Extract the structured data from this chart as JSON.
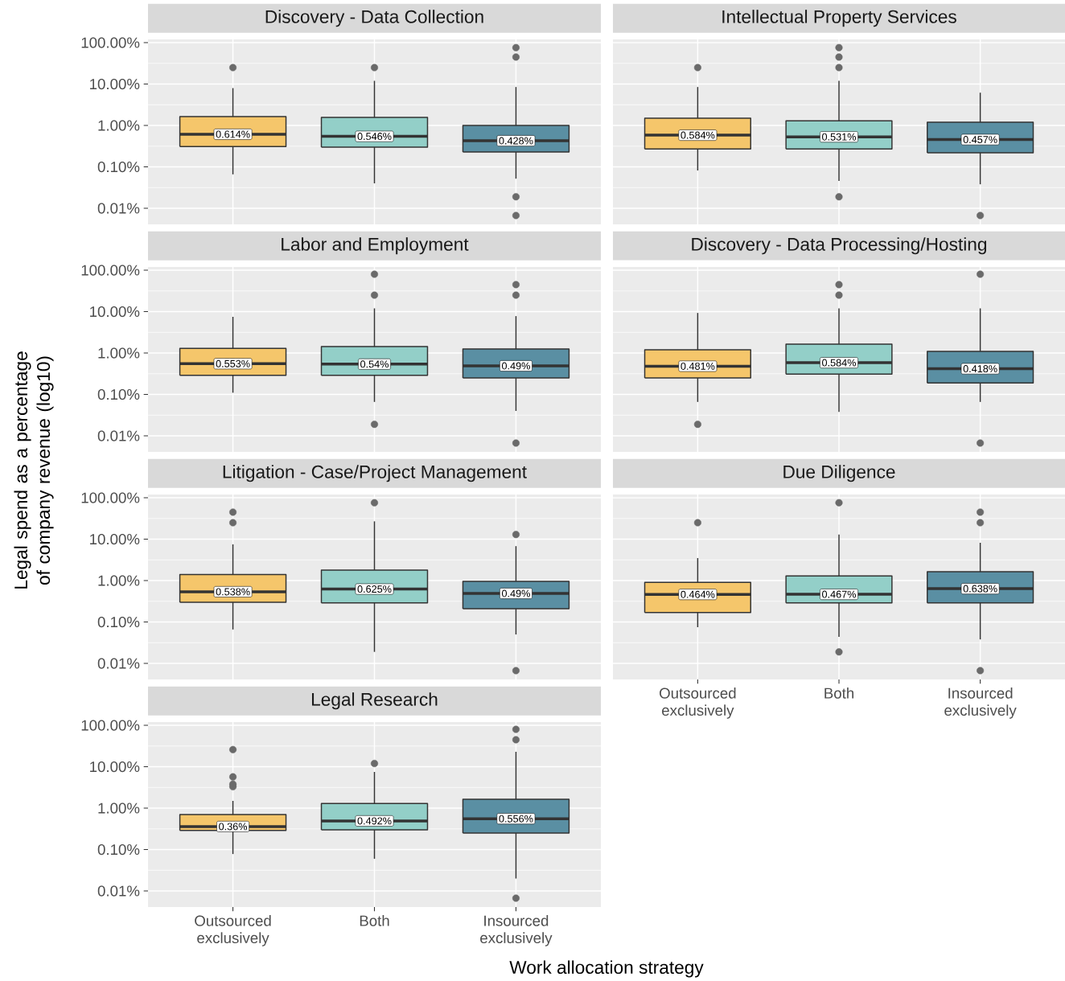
{
  "chart_data": [
    {
      "type": "box",
      "title": "Discovery - Data Collection",
      "categories": [
        "Outsourced exclusively",
        "Both",
        "Insourced exclusively"
      ],
      "colors": [
        "#f5c66b",
        "#93cfc8",
        "#5a8fa3"
      ],
      "log": true,
      "grid": true,
      "tick_labels": "y",
      "ylim": [
        0.0041,
        120
      ],
      "yticks": [
        {
          "value": 0.01,
          "label": "0.01%"
        },
        {
          "value": 0.1,
          "label": "0.10%"
        },
        {
          "value": 1,
          "label": "1.00%"
        },
        {
          "value": 10,
          "label": "10.00%"
        },
        {
          "value": 100,
          "label": "100.00%"
        }
      ],
      "boxes": [
        {
          "low": 0.066,
          "q1": 0.31,
          "median": 0.614,
          "q3": 1.64,
          "high": 8.0,
          "outliers": [
            25
          ]
        },
        {
          "low": 0.04,
          "q1": 0.3,
          "median": 0.546,
          "q3": 1.56,
          "high": 12,
          "outliers": [
            25
          ]
        },
        {
          "low": 0.052,
          "q1": 0.23,
          "median": 0.428,
          "q3": 1.0,
          "high": 8.5,
          "outliers": [
            76,
            45,
            0.019,
            0.0067
          ]
        }
      ],
      "annotations": [
        {
          "text": "0.614%",
          "x": "Outsourced exclusively",
          "y": 0.614
        },
        {
          "text": "0.546%",
          "x": "Both",
          "y": 0.546
        },
        {
          "text": "0.428%",
          "x": "Insourced exclusively",
          "y": 0.428
        }
      ]
    },
    {
      "type": "box",
      "title": "Intellectual Property Services",
      "categories": [
        "Outsourced exclusively",
        "Both",
        "Insourced exclusively"
      ],
      "colors": [
        "#f5c66b",
        "#93cfc8",
        "#5a8fa3"
      ],
      "log": true,
      "grid": true,
      "tick_labels": false,
      "ylim": [
        0.0041,
        120
      ],
      "yticks": [
        0.01,
        0.1,
        1,
        10,
        100
      ],
      "boxes": [
        {
          "low": 0.082,
          "q1": 0.27,
          "median": 0.584,
          "q3": 1.5,
          "high": 8.5,
          "outliers": [
            25
          ]
        },
        {
          "low": 0.046,
          "q1": 0.27,
          "median": 0.531,
          "q3": 1.3,
          "high": 12,
          "outliers": [
            76,
            45,
            25,
            0.019
          ]
        },
        {
          "low": 0.038,
          "q1": 0.22,
          "median": 0.457,
          "q3": 1.2,
          "high": 6.2,
          "outliers": [
            0.0067
          ]
        }
      ],
      "annotations": [
        {
          "text": "0.584%",
          "x": "Outsourced exclusively",
          "y": 0.584
        },
        {
          "text": "0.531%",
          "x": "Both",
          "y": 0.531
        },
        {
          "text": "0.457%",
          "x": "Insourced exclusively",
          "y": 0.457
        }
      ]
    },
    {
      "type": "box",
      "title": "Labor and Employment",
      "categories": [
        "Outsourced exclusively",
        "Both",
        "Insourced exclusively"
      ],
      "colors": [
        "#f5c66b",
        "#93cfc8",
        "#5a8fa3"
      ],
      "log": true,
      "grid": true,
      "tick_labels": "y",
      "ylim": [
        0.0041,
        120
      ],
      "yticks": [
        {
          "value": 0.01,
          "label": "0.01%"
        },
        {
          "value": 0.1,
          "label": "0.10%"
        },
        {
          "value": 1,
          "label": "1.00%"
        },
        {
          "value": 10,
          "label": "10.00%"
        },
        {
          "value": 100,
          "label": "100.00%"
        }
      ],
      "boxes": [
        {
          "low": 0.11,
          "q1": 0.29,
          "median": 0.553,
          "q3": 1.3,
          "high": 7.5
        },
        {
          "low": 0.066,
          "q1": 0.29,
          "median": 0.54,
          "q3": 1.43,
          "high": 12,
          "outliers": [
            80,
            25,
            0.019
          ]
        },
        {
          "low": 0.04,
          "q1": 0.25,
          "median": 0.49,
          "q3": 1.25,
          "high": 7.8,
          "outliers": [
            45,
            25,
            0.0067
          ]
        }
      ],
      "annotations": [
        {
          "text": "0.553%",
          "x": "Outsourced exclusively",
          "y": 0.553
        },
        {
          "text": "0.54%",
          "x": "Both",
          "y": 0.54
        },
        {
          "text": "0.49%",
          "x": "Insourced exclusively",
          "y": 0.49
        }
      ]
    },
    {
      "type": "box",
      "title": "Discovery - Data Processing/Hosting",
      "categories": [
        "Outsourced exclusively",
        "Both",
        "Insourced exclusively"
      ],
      "colors": [
        "#f5c66b",
        "#93cfc8",
        "#5a8fa3"
      ],
      "log": true,
      "grid": true,
      "tick_labels": false,
      "ylim": [
        0.0041,
        120
      ],
      "yticks": [
        0.01,
        0.1,
        1,
        10,
        100
      ],
      "boxes": [
        {
          "low": 0.066,
          "q1": 0.25,
          "median": 0.481,
          "q3": 1.2,
          "high": 9.3,
          "outliers": [
            0.019
          ]
        },
        {
          "low": 0.038,
          "q1": 0.31,
          "median": 0.584,
          "q3": 1.64,
          "high": 12,
          "outliers": [
            45,
            25
          ]
        },
        {
          "low": 0.066,
          "q1": 0.19,
          "median": 0.418,
          "q3": 1.1,
          "high": 12,
          "outliers": [
            80,
            0.0067
          ]
        }
      ],
      "annotations": [
        {
          "text": "0.481%",
          "x": "Outsourced exclusively",
          "y": 0.481
        },
        {
          "text": "0.584%",
          "x": "Both",
          "y": 0.584
        },
        {
          "text": "0.418%",
          "x": "Insourced exclusively",
          "y": 0.418
        }
      ]
    },
    {
      "type": "box",
      "title": "Litigation - Case/Project Management",
      "ylabel": "Legal spend as a percentage of company revenue (log10)",
      "categories": [
        "Outsourced exclusively",
        "Both",
        "Insourced exclusively"
      ],
      "colors": [
        "#f5c66b",
        "#93cfc8",
        "#5a8fa3"
      ],
      "log": true,
      "grid": true,
      "tick_labels": "y",
      "ylim": [
        0.0041,
        120
      ],
      "yticks": [
        {
          "value": 0.01,
          "label": "0.01%"
        },
        {
          "value": 0.1,
          "label": "0.10%"
        },
        {
          "value": 1,
          "label": "1.00%"
        },
        {
          "value": 10,
          "label": "10.00%"
        },
        {
          "value": 100,
          "label": "100.00%"
        }
      ],
      "boxes": [
        {
          "low": 0.066,
          "q1": 0.3,
          "median": 0.538,
          "q3": 1.4,
          "high": 7.5,
          "outliers": [
            45,
            25
          ]
        },
        {
          "low": 0.019,
          "q1": 0.29,
          "median": 0.625,
          "q3": 1.8,
          "high": 27,
          "outliers": [
            76
          ]
        },
        {
          "low": 0.05,
          "q1": 0.21,
          "median": 0.49,
          "q3": 0.96,
          "high": 6.8,
          "outliers": [
            13,
            0.0067
          ]
        }
      ],
      "annotations": [
        {
          "text": "0.538%",
          "x": "Outsourced exclusively",
          "y": 0.538
        },
        {
          "text": "0.625%",
          "x": "Both",
          "y": 0.625
        },
        {
          "text": "0.49%",
          "x": "Insourced exclusively",
          "y": 0.49
        }
      ]
    },
    {
      "type": "box",
      "title": "Due Diligence",
      "categories": [
        "Outsourced exclusively",
        "Both",
        "Insourced exclusively"
      ],
      "colors": [
        "#f5c66b",
        "#93cfc8",
        "#5a8fa3"
      ],
      "log": true,
      "grid": true,
      "tick_labels": "x",
      "ylim": [
        0.0041,
        120
      ],
      "yticks": [
        0.01,
        0.1,
        1,
        10,
        100
      ],
      "boxes": [
        {
          "low": 0.075,
          "q1": 0.17,
          "median": 0.464,
          "q3": 0.91,
          "high": 3.5,
          "outliers": [
            25
          ]
        },
        {
          "low": 0.044,
          "q1": 0.29,
          "median": 0.467,
          "q3": 1.3,
          "high": 13,
          "outliers": [
            76,
            0.019
          ]
        },
        {
          "low": 0.038,
          "q1": 0.29,
          "median": 0.638,
          "q3": 1.64,
          "high": 8.2,
          "outliers": [
            45,
            25,
            0.0067
          ]
        }
      ],
      "annotations": [
        {
          "text": "0.464%",
          "x": "Outsourced exclusively",
          "y": 0.464
        },
        {
          "text": "0.467%",
          "x": "Both",
          "y": 0.467
        },
        {
          "text": "0.638%",
          "x": "Insourced exclusively",
          "y": 0.638
        }
      ]
    },
    {
      "type": "box",
      "title": "Legal Research",
      "xlabel": "Work allocation strategy",
      "categories": [
        "Outsourced exclusively",
        "Both",
        "Insourced exclusively"
      ],
      "colors": [
        "#f5c66b",
        "#93cfc8",
        "#5a8fa3"
      ],
      "log": true,
      "grid": true,
      "ylim": [
        0.0041,
        120
      ],
      "yticks": [
        {
          "value": 0.01,
          "label": "0.01%"
        },
        {
          "value": 0.1,
          "label": "0.10%"
        },
        {
          "value": 1,
          "label": "1.00%"
        },
        {
          "value": 10,
          "label": "10.00%"
        },
        {
          "value": 100,
          "label": "100.00%"
        }
      ],
      "boxes": [
        {
          "low": 0.078,
          "q1": 0.29,
          "median": 0.36,
          "q3": 0.7,
          "high": 1.5,
          "outliers": [
            26,
            5.7,
            3.8,
            3.3
          ]
        },
        {
          "low": 0.06,
          "q1": 0.3,
          "median": 0.492,
          "q3": 1.3,
          "high": 7.5,
          "outliers": [
            12
          ]
        },
        {
          "low": 0.02,
          "q1": 0.25,
          "median": 0.556,
          "q3": 1.64,
          "high": 23,
          "outliers": [
            80,
            45,
            0.0067
          ]
        }
      ],
      "annotations": [
        {
          "text": "0.36%",
          "x": "Outsourced exclusively",
          "y": 0.36
        },
        {
          "text": "0.492%",
          "x": "Both",
          "y": 0.492
        },
        {
          "text": "0.556%",
          "x": "Insourced exclusively",
          "y": 0.556
        }
      ]
    }
  ]
}
